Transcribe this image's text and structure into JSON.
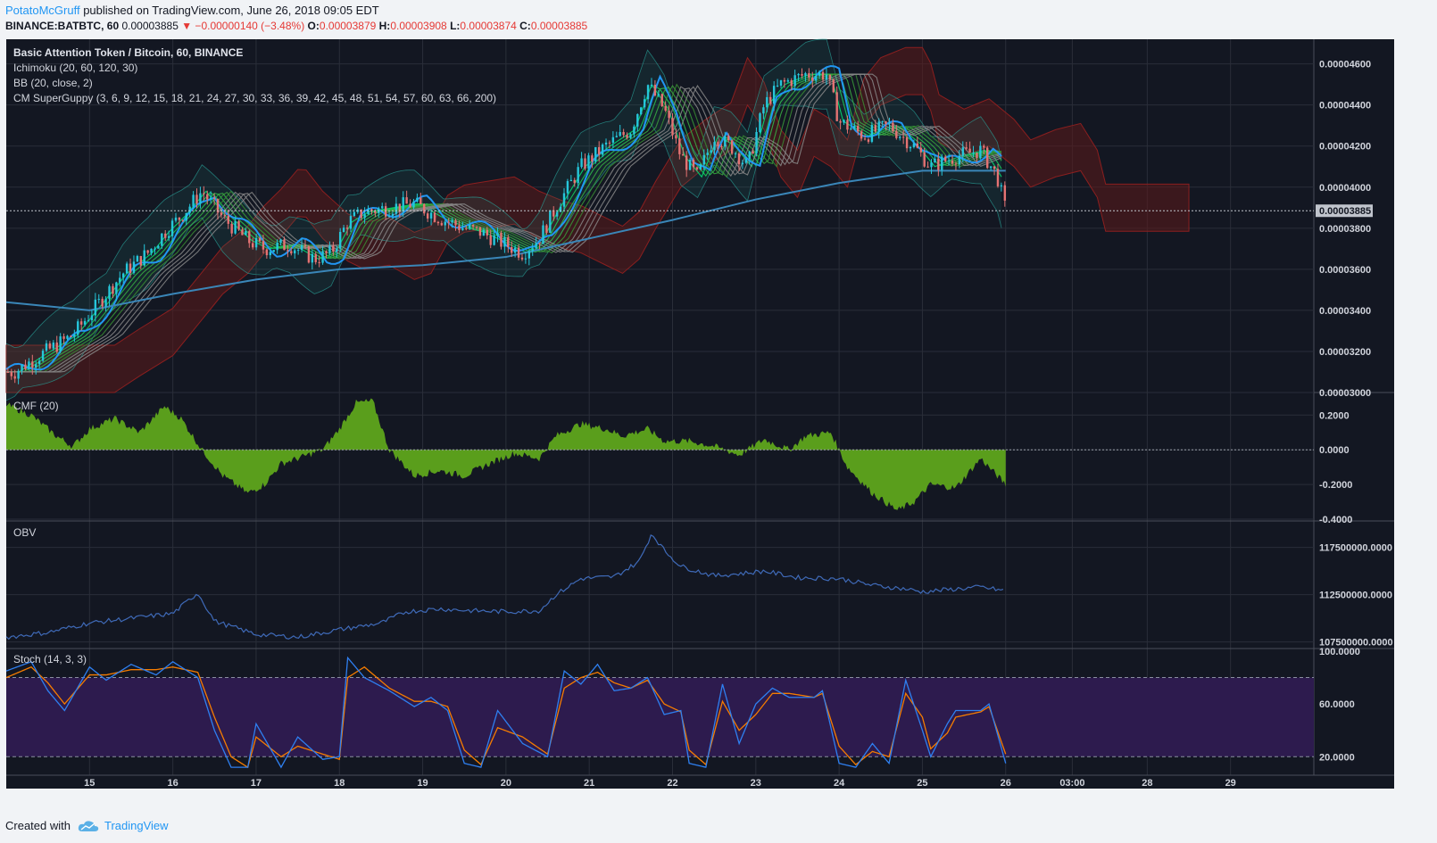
{
  "header": {
    "author": "PotatoMcGruff",
    "published": "published on TradingView.com, June 26, 2018 09:05 EDT"
  },
  "quote": {
    "symbol": "BINANCE:BATBTC, 60",
    "last": "0.00003885",
    "change": "▼ −0.00000140 (−3.48%)",
    "open_label": "O:",
    "open": "0.00003879",
    "high_label": "H:",
    "high": "0.00003908",
    "low_label": "L:",
    "low": "0.00003874",
    "close_label": "C:",
    "close": "0.00003885"
  },
  "footer": {
    "created": "Created with",
    "brand": "TradingView"
  },
  "colors": {
    "background": "#131722",
    "grid": "#2a2e39",
    "text": "#d1d4dc",
    "up": "#26c6da",
    "down": "#e57373",
    "cmf": "#5a9e1c",
    "obv": "#3f6ab8",
    "stoch_k": "#2e7ff0",
    "stoch_d": "#f57c00",
    "stoch_band": "#2d1b4e",
    "kumo_red": "#5c1a1a",
    "ma200": "#3a86b8"
  },
  "chart_data": [
    {
      "type": "candlestick",
      "title": "Basic Attention Token / Bitcoin, 60, BINANCE",
      "indicators": [
        "Ichimoku (20, 60, 120, 30)",
        "BB (20, close, 2)",
        "CM SuperGuppy (3, 6, 9, 12, 15, 18, 21, 24, 27, 30, 33, 36, 39, 42, 45, 48, 51, 54, 57, 60, 63, 66, 200)"
      ],
      "ylim": [
        3e-05,
        4.72e-05
      ],
      "yticks": [
        "0.00004600",
        "0.00004400",
        "0.00004200",
        "0.00004000",
        "0.00003800",
        "0.00003600",
        "0.00003400",
        "0.00003200",
        "0.00003000"
      ],
      "last_price_label": "0.00003885",
      "close_path": [
        [
          14.1,
          3.1e-05
        ],
        [
          14.4,
          3.18e-05
        ],
        [
          14.8,
          3.28e-05
        ],
        [
          15.0,
          3.38e-05
        ],
        [
          15.2,
          3.48e-05
        ],
        [
          15.4,
          3.58e-05
        ],
        [
          15.7,
          3.68e-05
        ],
        [
          15.9,
          3.78e-05
        ],
        [
          16.1,
          3.86e-05
        ],
        [
          16.35,
          3.98e-05
        ],
        [
          16.6,
          3.85e-05
        ],
        [
          16.9,
          3.74e-05
        ],
        [
          17.1,
          3.7e-05
        ],
        [
          17.4,
          3.72e-05
        ],
        [
          17.7,
          3.65e-05
        ],
        [
          17.9,
          3.68e-05
        ],
        [
          18.1,
          3.83e-05
        ],
        [
          18.3,
          3.88e-05
        ],
        [
          18.6,
          3.9e-05
        ],
        [
          18.9,
          3.92e-05
        ],
        [
          19.2,
          3.85e-05
        ],
        [
          19.5,
          3.8e-05
        ],
        [
          19.7,
          3.78e-05
        ],
        [
          19.9,
          3.74e-05
        ],
        [
          20.2,
          3.68e-05
        ],
        [
          20.4,
          3.75e-05
        ],
        [
          20.6,
          3.9e-05
        ],
        [
          20.9,
          4.1e-05
        ],
        [
          21.2,
          4.2e-05
        ],
        [
          21.5,
          4.28e-05
        ],
        [
          21.7,
          4.5e-05
        ],
        [
          21.9,
          4.38e-05
        ],
        [
          22.1,
          4.15e-05
        ],
        [
          22.3,
          4.05e-05
        ],
        [
          22.5,
          4.25e-05
        ],
        [
          22.7,
          4.2e-05
        ],
        [
          22.9,
          4.1e-05
        ],
        [
          23.1,
          4.4e-05
        ],
        [
          23.3,
          4.5e-05
        ],
        [
          23.6,
          4.55e-05
        ],
        [
          23.85,
          4.55e-05
        ],
        [
          24.0,
          4.32e-05
        ],
        [
          24.3,
          4.25e-05
        ],
        [
          24.6,
          4.3e-05
        ],
        [
          24.9,
          4.2e-05
        ],
        [
          25.1,
          4.1e-05
        ],
        [
          25.4,
          4.15e-05
        ],
        [
          25.7,
          4.18e-05
        ],
        [
          25.9,
          4.05e-05
        ],
        [
          26.0,
          3.885e-05
        ]
      ],
      "ma200": [
        [
          14.0,
          3.44e-05
        ],
        [
          15.0,
          3.4e-05
        ],
        [
          16.0,
          3.48e-05
        ],
        [
          17.0,
          3.55e-05
        ],
        [
          18.0,
          3.6e-05
        ],
        [
          19.0,
          3.62e-05
        ],
        [
          20.0,
          3.66e-05
        ],
        [
          21.0,
          3.75e-05
        ],
        [
          22.0,
          3.84e-05
        ],
        [
          23.0,
          3.94e-05
        ],
        [
          24.0,
          4.02e-05
        ],
        [
          25.0,
          4.08e-05
        ],
        [
          26.0,
          4.08e-05
        ]
      ]
    },
    {
      "type": "area",
      "title": "CMF (20)",
      "ylim": [
        -0.41,
        0.33
      ],
      "yticks": [
        "0.2000",
        "0.0000",
        "-0.2000",
        "-0.4000"
      ],
      "values": [
        [
          14.0,
          0.26
        ],
        [
          14.3,
          0.2
        ],
        [
          14.6,
          0.08
        ],
        [
          14.8,
          0.02
        ],
        [
          15.0,
          0.12
        ],
        [
          15.3,
          0.18
        ],
        [
          15.6,
          0.1
        ],
        [
          15.9,
          0.25
        ],
        [
          16.1,
          0.18
        ],
        [
          16.35,
          0.0
        ],
        [
          16.6,
          -0.15
        ],
        [
          16.9,
          -0.25
        ],
        [
          17.1,
          -0.2
        ],
        [
          17.3,
          -0.08
        ],
        [
          17.5,
          -0.05
        ],
        [
          17.8,
          0.0
        ],
        [
          18.0,
          0.12
        ],
        [
          18.2,
          0.27
        ],
        [
          18.4,
          0.28
        ],
        [
          18.6,
          0.0
        ],
        [
          18.9,
          -0.15
        ],
        [
          19.2,
          -0.12
        ],
        [
          19.5,
          -0.15
        ],
        [
          19.8,
          -0.08
        ],
        [
          20.1,
          -0.02
        ],
        [
          20.4,
          -0.05
        ],
        [
          20.6,
          0.08
        ],
        [
          20.9,
          0.15
        ],
        [
          21.2,
          0.12
        ],
        [
          21.4,
          0.08
        ],
        [
          21.7,
          0.12
        ],
        [
          21.9,
          0.05
        ],
        [
          22.2,
          0.05
        ],
        [
          22.5,
          0.02
        ],
        [
          22.8,
          -0.03
        ],
        [
          23.1,
          0.06
        ],
        [
          23.4,
          0.0
        ],
        [
          23.6,
          0.08
        ],
        [
          23.9,
          0.1
        ],
        [
          24.1,
          -0.1
        ],
        [
          24.4,
          -0.25
        ],
        [
          24.7,
          -0.35
        ],
        [
          24.9,
          -0.3
        ],
        [
          25.1,
          -0.2
        ],
        [
          25.4,
          -0.22
        ],
        [
          25.7,
          -0.05
        ],
        [
          26.0,
          -0.2
        ]
      ]
    },
    {
      "type": "line",
      "title": "OBV",
      "ylim": [
        106800000,
        120300000
      ],
      "yticks": [
        "117500000.0000",
        "112500000.0000",
        "107500000.0000"
      ],
      "values": [
        [
          14.0,
          108000000
        ],
        [
          14.5,
          108500000
        ],
        [
          15.0,
          109500000
        ],
        [
          15.5,
          110000000
        ],
        [
          16.0,
          110500000
        ],
        [
          16.3,
          112700000
        ],
        [
          16.5,
          109700000
        ],
        [
          17.0,
          108300000
        ],
        [
          17.5,
          108000000
        ],
        [
          18.0,
          108800000
        ],
        [
          18.5,
          109500000
        ],
        [
          18.8,
          110700000
        ],
        [
          19.2,
          111000000
        ],
        [
          19.6,
          110800000
        ],
        [
          20.0,
          110700000
        ],
        [
          20.4,
          110800000
        ],
        [
          20.6,
          112500000
        ],
        [
          20.9,
          114200000
        ],
        [
          21.3,
          114400000
        ],
        [
          21.6,
          116000000
        ],
        [
          21.75,
          119000000
        ],
        [
          21.9,
          117200000
        ],
        [
          22.1,
          115500000
        ],
        [
          22.5,
          114500000
        ],
        [
          22.9,
          114800000
        ],
        [
          23.1,
          115000000
        ],
        [
          23.5,
          114300000
        ],
        [
          24.0,
          114200000
        ],
        [
          24.4,
          113500000
        ],
        [
          24.8,
          113100000
        ],
        [
          25.0,
          112800000
        ],
        [
          25.4,
          113100000
        ],
        [
          25.7,
          113300000
        ],
        [
          26.0,
          112900000
        ]
      ]
    },
    {
      "type": "line",
      "title": "Stoch (14, 3, 3)",
      "ylim": [
        6,
        102
      ],
      "yticks": [
        "100.0000",
        "60.0000",
        "20.0000"
      ],
      "band": [
        20,
        80
      ],
      "k": [
        [
          14.0,
          85
        ],
        [
          14.3,
          92
        ],
        [
          14.5,
          70
        ],
        [
          14.7,
          55
        ],
        [
          15.0,
          88
        ],
        [
          15.2,
          78
        ],
        [
          15.5,
          90
        ],
        [
          15.8,
          82
        ],
        [
          16.0,
          92
        ],
        [
          16.3,
          80
        ],
        [
          16.5,
          40
        ],
        [
          16.7,
          12
        ],
        [
          16.9,
          12
        ],
        [
          17.0,
          45
        ],
        [
          17.3,
          12
        ],
        [
          17.5,
          35
        ],
        [
          17.8,
          18
        ],
        [
          18.0,
          20
        ],
        [
          18.1,
          95
        ],
        [
          18.3,
          80
        ],
        [
          18.6,
          70
        ],
        [
          18.9,
          58
        ],
        [
          19.1,
          65
        ],
        [
          19.3,
          55
        ],
        [
          19.5,
          15
        ],
        [
          19.7,
          12
        ],
        [
          19.9,
          55
        ],
        [
          20.2,
          30
        ],
        [
          20.5,
          20
        ],
        [
          20.7,
          85
        ],
        [
          20.9,
          75
        ],
        [
          21.1,
          90
        ],
        [
          21.3,
          70
        ],
        [
          21.5,
          72
        ],
        [
          21.7,
          80
        ],
        [
          21.9,
          52
        ],
        [
          22.1,
          55
        ],
        [
          22.2,
          15
        ],
        [
          22.4,
          12
        ],
        [
          22.6,
          75
        ],
        [
          22.8,
          30
        ],
        [
          23.0,
          60
        ],
        [
          23.2,
          72
        ],
        [
          23.4,
          65
        ],
        [
          23.7,
          65
        ],
        [
          23.8,
          70
        ],
        [
          24.0,
          15
        ],
        [
          24.2,
          12
        ],
        [
          24.4,
          30
        ],
        [
          24.6,
          15
        ],
        [
          24.8,
          78
        ],
        [
          25.0,
          40
        ],
        [
          25.1,
          20
        ],
        [
          25.3,
          45
        ],
        [
          25.4,
          55
        ],
        [
          25.7,
          55
        ],
        [
          25.8,
          60
        ],
        [
          26.0,
          15
        ]
      ],
      "d": [
        [
          14.0,
          80
        ],
        [
          14.3,
          88
        ],
        [
          14.5,
          76
        ],
        [
          14.7,
          60
        ],
        [
          15.0,
          82
        ],
        [
          15.2,
          82
        ],
        [
          15.5,
          86
        ],
        [
          15.8,
          86
        ],
        [
          16.0,
          88
        ],
        [
          16.3,
          84
        ],
        [
          16.5,
          50
        ],
        [
          16.7,
          20
        ],
        [
          16.9,
          12
        ],
        [
          17.0,
          35
        ],
        [
          17.3,
          20
        ],
        [
          17.5,
          28
        ],
        [
          17.8,
          22
        ],
        [
          18.0,
          18
        ],
        [
          18.1,
          80
        ],
        [
          18.3,
          88
        ],
        [
          18.6,
          72
        ],
        [
          18.9,
          62
        ],
        [
          19.1,
          62
        ],
        [
          19.3,
          58
        ],
        [
          19.5,
          25
        ],
        [
          19.7,
          14
        ],
        [
          19.9,
          42
        ],
        [
          20.2,
          35
        ],
        [
          20.5,
          22
        ],
        [
          20.7,
          72
        ],
        [
          20.9,
          80
        ],
        [
          21.1,
          84
        ],
        [
          21.3,
          76
        ],
        [
          21.5,
          72
        ],
        [
          21.7,
          78
        ],
        [
          21.9,
          60
        ],
        [
          22.1,
          54
        ],
        [
          22.2,
          25
        ],
        [
          22.4,
          14
        ],
        [
          22.6,
          62
        ],
        [
          22.8,
          40
        ],
        [
          23.0,
          52
        ],
        [
          23.2,
          68
        ],
        [
          23.4,
          68
        ],
        [
          23.7,
          65
        ],
        [
          23.8,
          68
        ],
        [
          24.0,
          28
        ],
        [
          24.2,
          14
        ],
        [
          24.4,
          24
        ],
        [
          24.6,
          20
        ],
        [
          24.8,
          68
        ],
        [
          25.0,
          50
        ],
        [
          25.1,
          26
        ],
        [
          25.3,
          38
        ],
        [
          25.4,
          50
        ],
        [
          25.7,
          54
        ],
        [
          25.8,
          58
        ],
        [
          26.0,
          22
        ]
      ]
    }
  ],
  "x_axis": {
    "labels": [
      "15",
      "16",
      "17",
      "18",
      "19",
      "20",
      "21",
      "22",
      "23",
      "24",
      "25",
      "26",
      "03:00",
      "28",
      "29"
    ],
    "positions": [
      15,
      16,
      17,
      18,
      19,
      20,
      21,
      22,
      23,
      24,
      25,
      26,
      26.8,
      27.7,
      28.7
    ]
  }
}
